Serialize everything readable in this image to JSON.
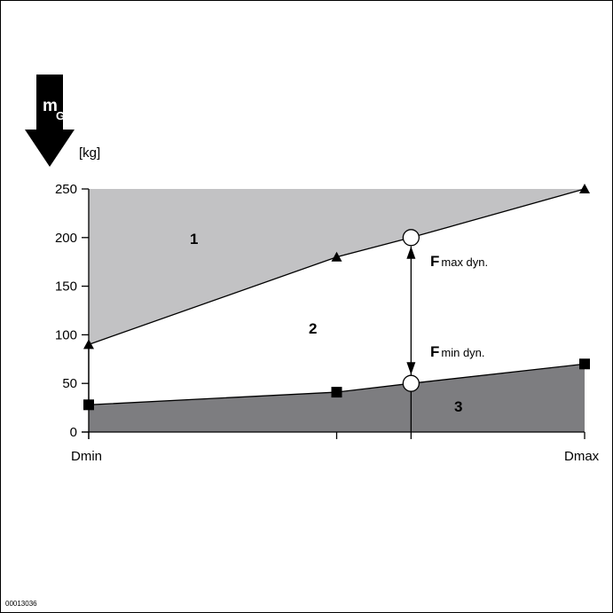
{
  "figure_id": "00013036",
  "load_arrow": {
    "symbol_main": "m",
    "symbol_sub": "G",
    "unit": "[kg]"
  },
  "colors": {
    "zone_1_fill": "#c2c2c4",
    "zone_3_fill": "#7d7d80",
    "line": "#000000",
    "arrow_fill": "#000000"
  },
  "chart_data": {
    "type": "area",
    "x_categories": [
      "Dmin",
      "Dmax"
    ],
    "ylim": [
      0,
      250
    ],
    "y_ticks": [
      0,
      50,
      100,
      150,
      200,
      250
    ],
    "x_positions_relative": [
      0,
      0.5,
      0.65,
      1
    ],
    "upper_curve_values": [
      90,
      180,
      200,
      250
    ],
    "lower_curve_values": [
      28,
      41,
      50,
      70
    ],
    "upper_markers": [
      90,
      180,
      250
    ],
    "lower_markers": [
      28,
      41,
      70
    ],
    "highlight_points": [
      200,
      50
    ],
    "zones": [
      {
        "label": "1"
      },
      {
        "label": "2"
      },
      {
        "label": "3"
      }
    ],
    "annotations": [
      {
        "main": "F",
        "sub": "max dyn."
      },
      {
        "main": "F",
        "sub": "min dyn."
      }
    ]
  }
}
